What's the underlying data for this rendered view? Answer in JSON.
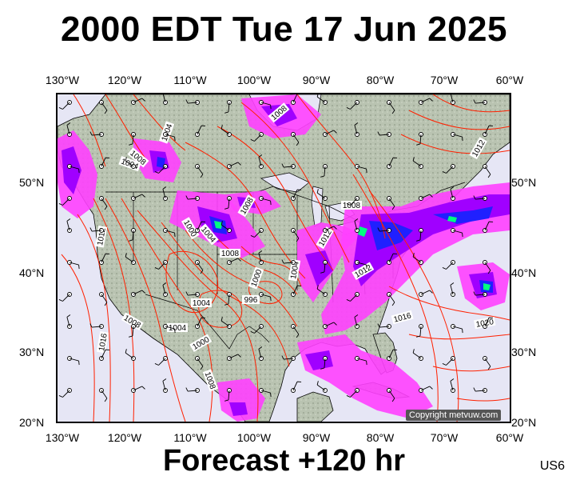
{
  "title": "2000 EDT Tue 17 Jun 2025",
  "footer": "Forecast +120 hr",
  "region_code": "US6",
  "copyright": "Copyright metvuw.com",
  "lon_labels": [
    "130°W",
    "120°W",
    "110°W",
    "100°W",
    "90°W",
    "80°W",
    "70°W",
    "60°W"
  ],
  "lat_labels": [
    "50°N",
    "40°N",
    "30°N",
    "20°N"
  ],
  "isobar_labels": [
    "1004",
    "1008",
    "1004",
    "1008",
    "1012",
    "1000",
    "1004",
    "1008",
    "1000",
    "996",
    "1004",
    "1004",
    "1008",
    "1000",
    "1004",
    "1008",
    "1012",
    "1016",
    "1020",
    "1016",
    "1008",
    "1012",
    "1012",
    "1008"
  ],
  "colors": {
    "ocean": "#e6e6f5",
    "land": "#b7c2b0",
    "isobar": "#ff2000",
    "precip_light": "#ff40ff",
    "precip_mid": "#a000ff",
    "precip_heavy": "#2020ff",
    "precip_extreme": "#00ff80"
  }
}
